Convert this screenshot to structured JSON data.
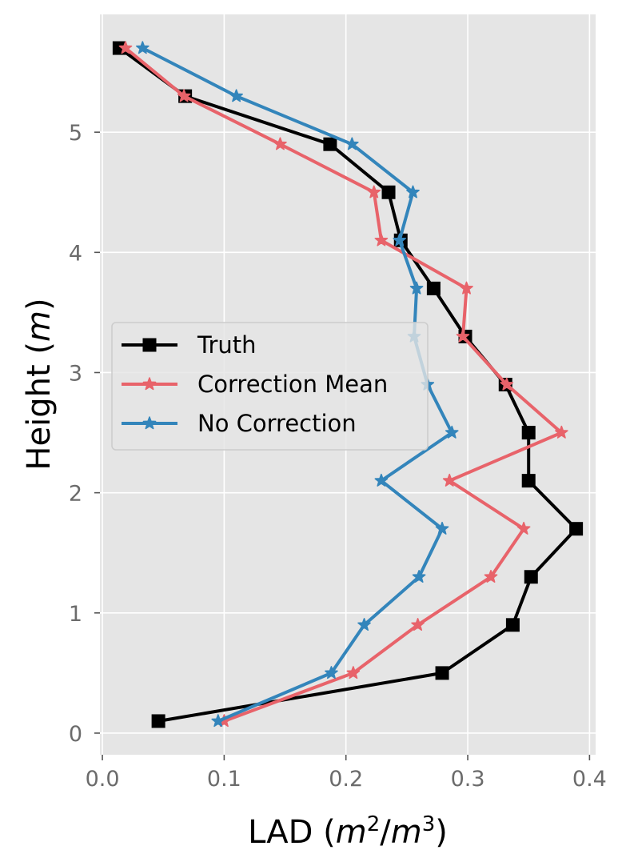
{
  "chart_data": {
    "type": "line",
    "title": "",
    "xlabel": {
      "prefix": "LAD (",
      "var1": "m",
      "sup1": "2",
      "slash": "/",
      "var2": "m",
      "sup2": "3",
      "suffix": ")"
    },
    "ylabel": {
      "prefix": "Height (",
      "var": "m",
      "suffix": ")"
    },
    "xlim": [
      -0.002,
      0.405
    ],
    "ylim": [
      -0.18,
      5.98
    ],
    "xticks": [
      0.0,
      0.1,
      0.2,
      0.3,
      0.4
    ],
    "xtick_labels": [
      "0.0",
      "0.1",
      "0.2",
      "0.3",
      "0.4"
    ],
    "yticks": [
      0,
      1,
      2,
      3,
      4,
      5
    ],
    "ytick_labels": [
      "0",
      "1",
      "2",
      "3",
      "4",
      "5"
    ],
    "grid": true,
    "legend_position": "center-left",
    "series": [
      {
        "name": "Truth",
        "color": "#000000",
        "marker": "square",
        "points": [
          [
            0.046,
            0.1
          ],
          [
            0.279,
            0.5
          ],
          [
            0.337,
            0.9
          ],
          [
            0.352,
            1.3
          ],
          [
            0.389,
            1.7
          ],
          [
            0.35,
            2.1
          ],
          [
            0.35,
            2.5
          ],
          [
            0.331,
            2.9
          ],
          [
            0.298,
            3.3
          ],
          [
            0.272,
            3.7
          ],
          [
            0.245,
            4.1
          ],
          [
            0.235,
            4.5
          ],
          [
            0.187,
            4.9
          ],
          [
            0.068,
            5.3
          ],
          [
            0.014,
            5.7
          ]
        ]
      },
      {
        "name": "Correction Mean",
        "color": "#E8636A",
        "marker": "star",
        "points": [
          [
            0.1,
            0.1
          ],
          [
            0.206,
            0.5
          ],
          [
            0.259,
            0.9
          ],
          [
            0.319,
            1.3
          ],
          [
            0.346,
            1.7
          ],
          [
            0.285,
            2.1
          ],
          [
            0.377,
            2.5
          ],
          [
            0.332,
            2.9
          ],
          [
            0.296,
            3.3
          ],
          [
            0.299,
            3.7
          ],
          [
            0.229,
            4.1
          ],
          [
            0.223,
            4.5
          ],
          [
            0.146,
            4.9
          ],
          [
            0.067,
            5.3
          ],
          [
            0.019,
            5.7
          ]
        ]
      },
      {
        "name": "No Correction",
        "color": "#3385BB",
        "marker": "star",
        "points": [
          [
            0.095,
            0.1
          ],
          [
            0.188,
            0.5
          ],
          [
            0.215,
            0.9
          ],
          [
            0.26,
            1.3
          ],
          [
            0.279,
            1.7
          ],
          [
            0.229,
            2.1
          ],
          [
            0.287,
            2.5
          ],
          [
            0.267,
            2.9
          ],
          [
            0.256,
            3.3
          ],
          [
            0.258,
            3.7
          ],
          [
            0.244,
            4.1
          ],
          [
            0.255,
            4.5
          ],
          [
            0.205,
            4.9
          ],
          [
            0.11,
            5.3
          ],
          [
            0.033,
            5.7
          ]
        ]
      }
    ]
  }
}
